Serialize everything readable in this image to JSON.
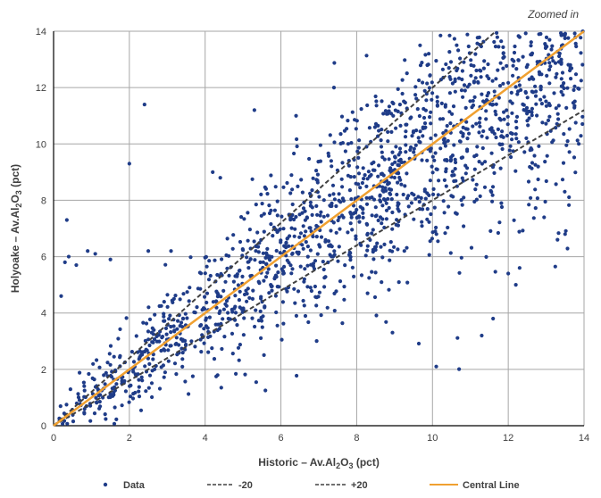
{
  "chart_data": {
    "type": "scatter",
    "annotation": "Zoomed in",
    "xlabel": {
      "prefix": "Historic – Av.Al",
      "sub1": "2",
      "mid": "O",
      "sub2": "3",
      "suffix": " (pct)"
    },
    "ylabel": {
      "prefix": "Holyoake – Av.Al",
      "sub1": "2",
      "mid": "O",
      "sub2": "3",
      "suffix": " (pct)"
    },
    "xlim": [
      0,
      14
    ],
    "ylim": [
      0,
      14
    ],
    "xticks": [
      0,
      2,
      4,
      6,
      8,
      10,
      12,
      14
    ],
    "yticks": [
      0,
      2,
      4,
      6,
      8,
      10,
      12,
      14
    ],
    "grid": true,
    "legend_position": "bottom",
    "colors": {
      "data": "#1f3c88",
      "band": "#404040",
      "central": "#f0a030",
      "grid": "#a6a6a6"
    },
    "series": [
      {
        "name": "Data",
        "kind": "scatter",
        "n_points": 1600
      },
      {
        "name": "-20",
        "kind": "line",
        "style": "dashed",
        "slope": 0.8,
        "points": [
          [
            0,
            0
          ],
          [
            14,
            11.2
          ]
        ]
      },
      {
        "name": "+20",
        "kind": "line",
        "style": "dashed",
        "slope": 1.2,
        "points": [
          [
            0,
            0
          ],
          [
            11.67,
            14
          ]
        ]
      },
      {
        "name": "Central Line",
        "kind": "line",
        "style": "solid",
        "slope": 1.0,
        "points": [
          [
            0,
            0
          ],
          [
            14,
            14
          ]
        ]
      }
    ],
    "outliers": [
      [
        0.2,
        4.6
      ],
      [
        0.3,
        5.8
      ],
      [
        0.35,
        7.3
      ],
      [
        0.4,
        6.0
      ],
      [
        0.6,
        5.7
      ],
      [
        0.9,
        6.2
      ],
      [
        1.1,
        6.1
      ],
      [
        1.5,
        5.9
      ],
      [
        2.0,
        9.3
      ],
      [
        2.4,
        11.4
      ],
      [
        2.5,
        6.2
      ],
      [
        3.1,
        6.2
      ],
      [
        4.2,
        9.0
      ],
      [
        4.4,
        8.8
      ],
      [
        5.3,
        11.2
      ],
      [
        6.4,
        11.0
      ],
      [
        7.4,
        12.0
      ],
      [
        10.1,
        2.1
      ],
      [
        11.3,
        3.2
      ],
      [
        11.6,
        3.8
      ],
      [
        12.0,
        5.4
      ],
      [
        12.2,
        5.0
      ],
      [
        12.3,
        5.6
      ],
      [
        13.3,
        6.6
      ],
      [
        13.5,
        6.8
      ]
    ],
    "legend": [
      "Data",
      "-20",
      "+20",
      "Central Line"
    ]
  }
}
